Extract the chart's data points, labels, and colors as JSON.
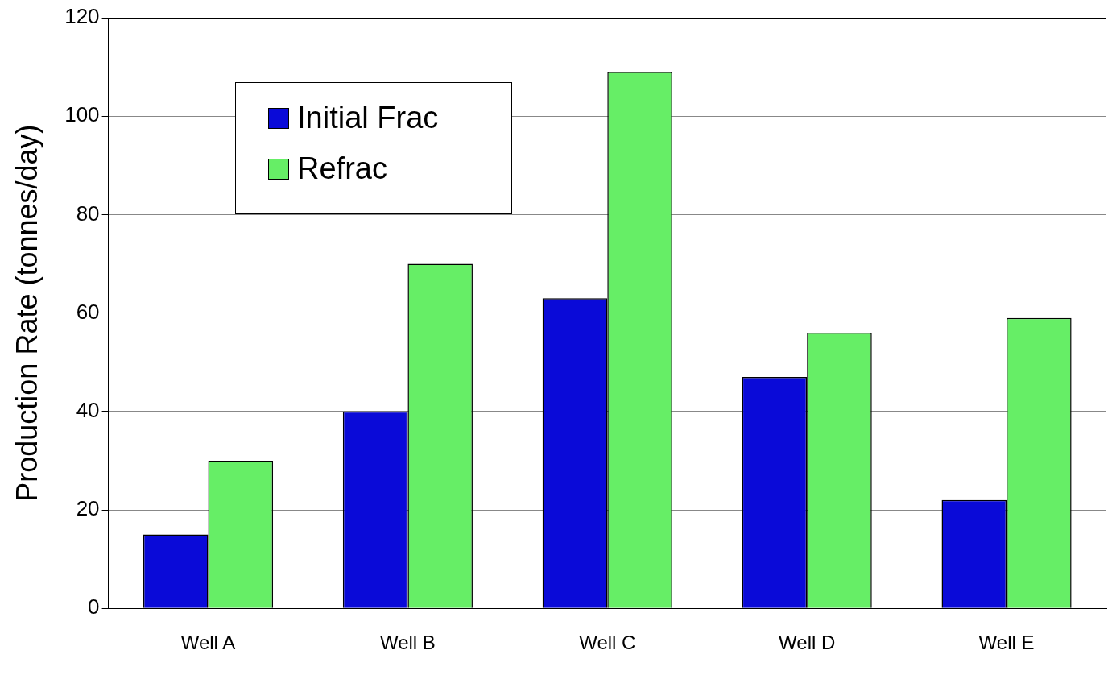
{
  "chart_data": {
    "type": "bar",
    "ylabel": "Production Rate (tonnes/day)",
    "categories": [
      "Well A",
      "Well B",
      "Well C",
      "Well D",
      "Well E"
    ],
    "series": [
      {
        "name": "Initial Frac",
        "color": "#0a0ad8",
        "values": [
          15,
          40,
          63,
          47,
          22
        ]
      },
      {
        "name": "Refrac",
        "color": "#66ee66",
        "values": [
          30,
          70,
          109,
          56,
          59
        ]
      }
    ],
    "ylim": [
      0,
      120
    ],
    "yticks": [
      0,
      20,
      40,
      60,
      80,
      100,
      120
    ],
    "grid": "y",
    "legend": "top left"
  }
}
